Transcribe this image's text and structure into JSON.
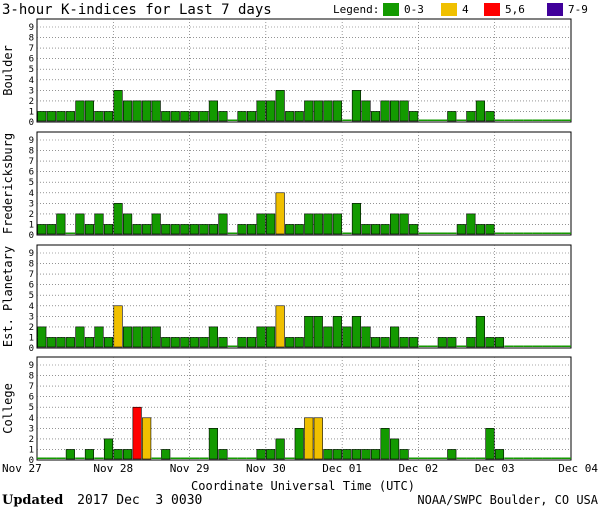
{
  "chart_data": {
    "type": "bar",
    "title": "3-hour K-indices for Last 7 days",
    "legend": {
      "label": "Legend:",
      "position": "top-right",
      "items": [
        {
          "label": "0-3",
          "color": "#139a00"
        },
        {
          "label": "4",
          "color": "#f0c000"
        },
        {
          "label": "5,6",
          "color": "#ff0000"
        },
        {
          "label": "7-9",
          "color": "#40009a"
        }
      ]
    },
    "xlabel": "Coordinate Universal Time (UTC)",
    "x_ticks": [
      "Nov 27",
      "Nov 28",
      "Nov 29",
      "Nov 30",
      "Dec 01",
      "Dec 02",
      "Dec 03",
      "Dec 04"
    ],
    "y_ticks": [
      "0",
      "1",
      "2",
      "3",
      "4",
      "5",
      "6",
      "7",
      "8",
      "9"
    ],
    "ylim": [
      0,
      9
    ],
    "grid": true,
    "bins_per_day": 8,
    "panels": [
      {
        "name": "Boulder",
        "values": [
          1,
          1,
          1,
          1,
          2,
          2,
          1,
          1,
          3,
          2,
          2,
          2,
          2,
          1,
          1,
          1,
          1,
          1,
          2,
          1,
          0,
          1,
          1,
          2,
          2,
          3,
          1,
          1,
          2,
          2,
          2,
          2,
          0,
          3,
          2,
          1,
          2,
          2,
          2,
          1,
          0,
          0,
          0,
          1,
          0,
          1,
          2,
          1,
          0,
          0,
          0,
          0,
          0,
          0,
          0,
          0
        ]
      },
      {
        "name": "Fredericksburg",
        "values": [
          1,
          1,
          2,
          0,
          2,
          1,
          2,
          1,
          3,
          2,
          1,
          1,
          2,
          1,
          1,
          1,
          1,
          1,
          1,
          2,
          0,
          1,
          1,
          2,
          2,
          4,
          1,
          1,
          2,
          2,
          2,
          2,
          0,
          3,
          1,
          1,
          1,
          2,
          2,
          1,
          0,
          0,
          0,
          0,
          1,
          2,
          1,
          1,
          0,
          0,
          0,
          0,
          0,
          0,
          0,
          0
        ]
      },
      {
        "name": "Est. Planetary",
        "values": [
          2,
          1,
          1,
          1,
          2,
          1,
          2,
          1,
          4,
          2,
          2,
          2,
          2,
          1,
          1,
          1,
          1,
          1,
          2,
          1,
          0,
          1,
          1,
          2,
          2,
          4,
          1,
          1,
          3,
          3,
          2,
          3,
          2,
          3,
          2,
          1,
          1,
          2,
          1,
          1,
          0,
          0,
          1,
          1,
          0,
          1,
          3,
          1,
          1,
          0,
          0,
          0,
          0,
          0,
          0,
          0
        ]
      },
      {
        "name": "College",
        "values": [
          0,
          0,
          0,
          1,
          0,
          1,
          0,
          2,
          1,
          1,
          5,
          4,
          0,
          1,
          0,
          0,
          0,
          0,
          3,
          1,
          0,
          0,
          0,
          1,
          1,
          2,
          0,
          3,
          4,
          4,
          1,
          1,
          1,
          1,
          1,
          1,
          3,
          2,
          1,
          0,
          0,
          0,
          0,
          1,
          0,
          0,
          0,
          3,
          1,
          0,
          0,
          0,
          0,
          0,
          0,
          0
        ]
      }
    ]
  },
  "footer": {
    "updated_label": "Updated",
    "updated_value": "2017 Dec  3 0030",
    "source": "NOAA/SWPC Boulder, CO USA"
  }
}
